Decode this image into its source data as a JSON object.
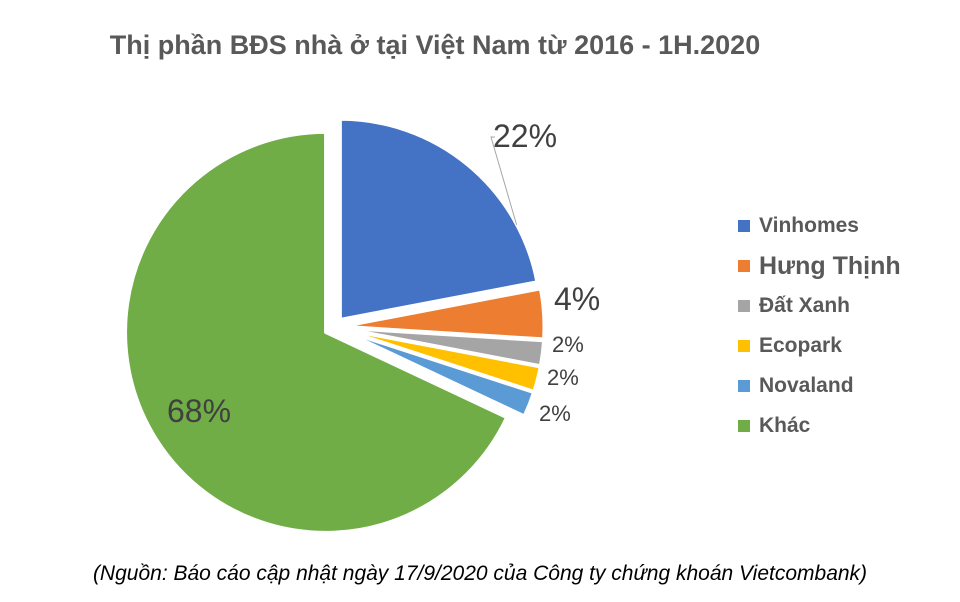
{
  "chart_data": {
    "type": "pie",
    "title": "Thị phần BĐS nhà ở tại Việt Nam từ 2016 - 1H.2020",
    "slices": [
      {
        "label": "Vinhomes",
        "value": 22,
        "value_label": "22%",
        "color": "#4472C4"
      },
      {
        "label": "Hưng Thịnh",
        "value": 4,
        "value_label": "4%",
        "color": "#ED7D31"
      },
      {
        "label": "Đất Xanh",
        "value": 2,
        "value_label": "2%",
        "color": "#A5A5A5"
      },
      {
        "label": "Ecopark",
        "value": 2,
        "value_label": "2%",
        "color": "#FFC000"
      },
      {
        "label": "Novaland",
        "value": 2,
        "value_label": "2%",
        "color": "#5B9BD5"
      },
      {
        "label": "Khác",
        "value": 68,
        "value_label": "68%",
        "color": "#70AD47"
      }
    ],
    "exploded": true,
    "legend_position": "right",
    "source_note": "(Nguồn: Báo cáo cập nhật ngày 17/9/2020 của Công ty chứng khoán Vietcombank)"
  }
}
